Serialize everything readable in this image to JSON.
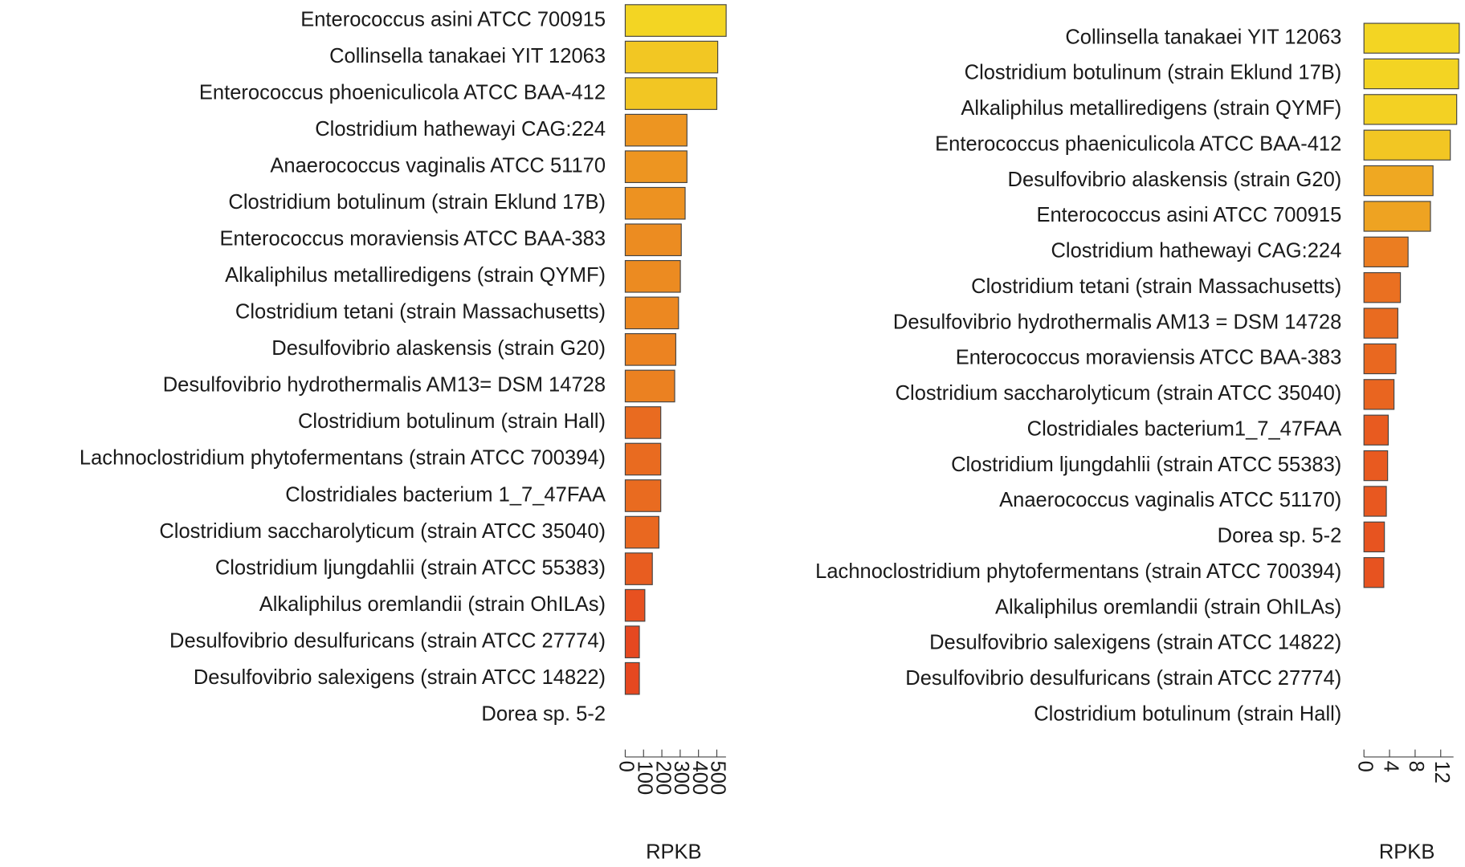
{
  "chart_data": [
    {
      "type": "bar",
      "orientation": "horizontal",
      "categories": [
        "Enterococcus asini ATCC 700915",
        "Collinsella tanakaei YIT 12063",
        "Enterococcus phoeniculicola ATCC BAA-412",
        "Clostridium hathewayi CAG:224",
        "Anaerococcus vaginalis ATCC 51170",
        "Clostridium botulinum (strain Eklund 17B)",
        "Enterococcus moraviensis ATCC BAA-383",
        "Alkaliphilus metalliredigens (strain QYMF)",
        "Clostridium tetani (strain Massachusetts)",
        "Desulfovibrio alaskensis (strain G20)",
        "Desulfovibrio hydrothermalis AM13= DSM 14728",
        "Clostridium botulinum (strain Hall)",
        "Lachnoclostridium phytofermentans (strain ATCC 700394)",
        "Clostridiales bacterium 1_7_47FAA",
        "Clostridium saccharolyticum (strain ATCC 35040)",
        "Clostridium ljungdahlii (strain ATCC 55383)",
        "Alkaliphilus oremlandii (strain OhILAs)",
        "Desulfovibrio desulfuricans (strain ATCC 27774)",
        "Desulfovibrio salexigens (strain ATCC 14822)",
        "Dorea sp. 5-2"
      ],
      "values": [
        551,
        505,
        500,
        337,
        337,
        327,
        306,
        301,
        291,
        276,
        270,
        194,
        194,
        194,
        184,
        148,
        107,
        77,
        77,
        0
      ],
      "xlim": [
        0,
        550
      ],
      "xticks": [
        0,
        100,
        200,
        300,
        400,
        500
      ],
      "xlabel": "RPKB",
      "color_scale": [
        "#e4311f",
        "#f3d523"
      ]
    },
    {
      "type": "bar",
      "orientation": "horizontal",
      "categories": [
        "Collinsella tanakaei YIT 12063",
        "Clostridium botulinum (strain Eklund 17B)",
        "Alkaliphilus metalliredigens (strain QYMF)",
        "Enterococcus phaeniculicola ATCC BAA-412",
        "Desulfovibrio alaskensis (strain G20)",
        "Enterococcus asini ATCC 700915",
        "Clostridium hathewayi CAG:224",
        "Clostridium tetani (strain Massachusetts)",
        "Desulfovibrio hydrothermalis AM13 = DSM 14728",
        "Enterococcus moraviensis ATCC BAA-383",
        "Clostridium saccharolyticum (strain ATCC 35040)",
        "Clostridiales bacterium1_7_47FAA",
        "Clostridium ljungdahlii (strain ATCC 55383)",
        "Anaerococcus vaginalis ATCC 51170)",
        "Dorea sp. 5-2",
        "Lachnoclostridium phytofermentans (strain ATCC 700394)",
        "Alkaliphilus oremlandii (strain OhILAs)",
        "Desulfovibrio salexigens (strain ATCC 14822)",
        "Desulfovibrio desulfuricans (strain ATCC 27774)",
        "Clostridium botulinum (strain Hall)"
      ],
      "values": [
        14.9,
        14.8,
        14.5,
        13.5,
        10.8,
        10.4,
        6.9,
        5.7,
        5.3,
        5.0,
        4.7,
        3.8,
        3.7,
        3.5,
        3.2,
        3.1,
        0,
        0,
        0,
        0
      ],
      "xlim": [
        0,
        14
      ],
      "xticks": [
        0,
        4,
        8,
        12
      ],
      "xlabel": "RPKB",
      "color_scale": [
        "#e4311f",
        "#f3d523"
      ]
    }
  ]
}
